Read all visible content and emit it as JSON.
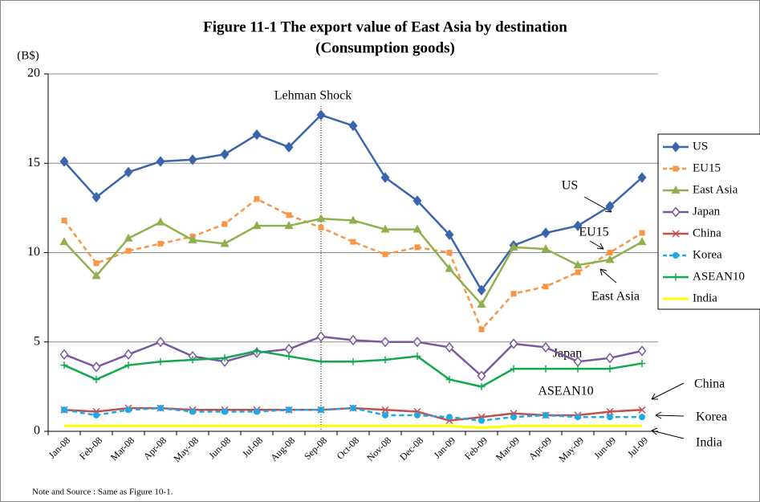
{
  "chart_data": {
    "type": "line",
    "title": "Figure 11-1 The export value of East Asia by destination",
    "subtitle": "(Consumption goods)",
    "y_label": "(B$)",
    "note": "Note and Source : Same as Figure 10-1.",
    "annotations": {
      "event": "Lehman Shock",
      "us": "US",
      "eu15": "EU15",
      "east_asia": "East Asia",
      "japan": "Japan",
      "asean10": "ASEAN10",
      "china": "China",
      "korea": "Korea",
      "india": "India"
    },
    "categories": [
      "Jan-08",
      "Feb-08",
      "Mar-08",
      "Apr-08",
      "May-08",
      "Jun-08",
      "Jul-08",
      "Aug-08",
      "Sep-08",
      "Oct-08",
      "Nov-08",
      "Dec-08",
      "Jan-09",
      "Feb-09",
      "Mar-09",
      "Apr-09",
      "May-09",
      "Jun-09",
      "Jul-09"
    ],
    "series": [
      {
        "name": "US",
        "color": "#3a64ac",
        "marker": "diamond",
        "dash": false,
        "values": [
          15.1,
          13.1,
          14.5,
          15.1,
          15.2,
          15.5,
          16.6,
          15.9,
          17.7,
          17.1,
          14.2,
          12.9,
          11.0,
          7.9,
          10.4,
          11.1,
          11.5,
          12.6,
          14.2
        ]
      },
      {
        "name": "EU15",
        "color": "#f79646",
        "marker": "square",
        "dash": true,
        "values": [
          11.8,
          9.4,
          10.1,
          10.5,
          10.9,
          11.6,
          13.0,
          12.1,
          11.4,
          10.6,
          9.9,
          10.3,
          10.0,
          5.7,
          7.7,
          8.1,
          8.9,
          10.0,
          11.1
        ]
      },
      {
        "name": "East Asia",
        "color": "#8eb04f",
        "marker": "triangle",
        "dash": false,
        "values": [
          10.6,
          8.7,
          10.8,
          11.7,
          10.7,
          10.5,
          11.5,
          11.5,
          11.9,
          11.8,
          11.3,
          11.3,
          9.1,
          7.1,
          10.3,
          10.2,
          9.3,
          9.6,
          10.6
        ]
      },
      {
        "name": "Japan",
        "color": "#7a5a9e",
        "marker": "open-diamond",
        "dash": false,
        "values": [
          4.3,
          3.6,
          4.3,
          5.0,
          4.2,
          3.9,
          4.4,
          4.6,
          5.3,
          5.1,
          5.0,
          5.0,
          4.7,
          3.1,
          4.9,
          4.7,
          3.9,
          4.1,
          4.5
        ]
      },
      {
        "name": "China",
        "color": "#c0504d",
        "marker": "x",
        "dash": false,
        "values": [
          1.2,
          1.1,
          1.3,
          1.3,
          1.2,
          1.2,
          1.2,
          1.2,
          1.2,
          1.3,
          1.2,
          1.1,
          0.6,
          0.8,
          1.0,
          0.9,
          0.9,
          1.1,
          1.2
        ]
      },
      {
        "name": "Korea",
        "color": "#1fa8e8",
        "marker": "circle",
        "dash": true,
        "values": [
          1.2,
          0.9,
          1.2,
          1.3,
          1.1,
          1.1,
          1.1,
          1.2,
          1.2,
          1.3,
          0.9,
          0.9,
          0.8,
          0.6,
          0.8,
          0.9,
          0.8,
          0.8,
          0.8
        ]
      },
      {
        "name": "ASEAN10",
        "color": "#13a84f",
        "marker": "plus",
        "dash": false,
        "values": [
          3.7,
          2.9,
          3.7,
          3.9,
          4.0,
          4.1,
          4.5,
          4.2,
          3.9,
          3.9,
          4.0,
          4.2,
          2.9,
          2.5,
          3.5,
          3.5,
          3.5,
          3.5,
          3.8
        ]
      },
      {
        "name": "India",
        "color": "#ffff00",
        "marker": "none",
        "dash": false,
        "values": [
          0.3,
          0.3,
          0.3,
          0.3,
          0.3,
          0.3,
          0.3,
          0.3,
          0.3,
          0.3,
          0.3,
          0.3,
          0.3,
          0.2,
          0.3,
          0.3,
          0.3,
          0.3,
          0.3
        ]
      }
    ],
    "ylim": [
      0,
      20
    ],
    "yticks": [
      0,
      5,
      10,
      15,
      20
    ],
    "grid": true,
    "legend": "right"
  }
}
